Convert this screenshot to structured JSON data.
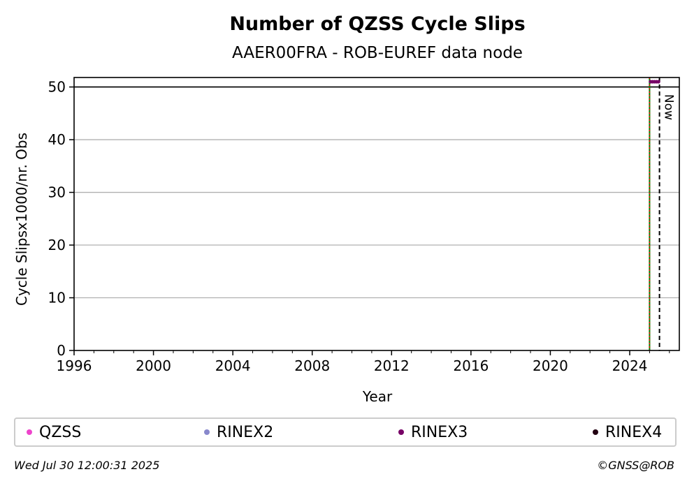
{
  "chart_data": {
    "type": "scatter",
    "title": "Number of QZSS Cycle Slips",
    "subtitle": "AAER00FRA - ROB-EUREF data node",
    "xlabel": "Year",
    "ylabel": "Cycle Slipsx1000/nr. Obs",
    "xlim": [
      1996,
      2026.5
    ],
    "ylim": [
      0,
      51.8
    ],
    "x_ticks": [
      "1996",
      "2000",
      "2004",
      "2008",
      "2012",
      "2016",
      "2020",
      "2024"
    ],
    "y_ticks": [
      "0",
      "10",
      "20",
      "30",
      "40",
      "50"
    ],
    "grid": "y",
    "limit_line": 50,
    "vlines": [
      {
        "x": 2025.0,
        "style": "green-red-dotted"
      },
      {
        "x": 2025.5,
        "label": "Now",
        "style": "black-dashed"
      }
    ],
    "series": [
      {
        "name": "QZSS",
        "color": "#ee44cc",
        "x": [],
        "y": []
      },
      {
        "name": "RINEX2",
        "color": "#8888cc",
        "x": [],
        "y": []
      },
      {
        "name": "RINEX3",
        "color": "#770066",
        "x": [
          2025.05,
          2025.15,
          2025.25,
          2025.35,
          2025.45
        ],
        "y": [
          51,
          51,
          51,
          51,
          51
        ]
      },
      {
        "name": "RINEX4",
        "color": "#220011",
        "x": [],
        "y": []
      }
    ]
  },
  "footer": {
    "timestamp": "Wed Jul 30 12:00:31 2025",
    "copyright": "©GNSS@ROB"
  }
}
